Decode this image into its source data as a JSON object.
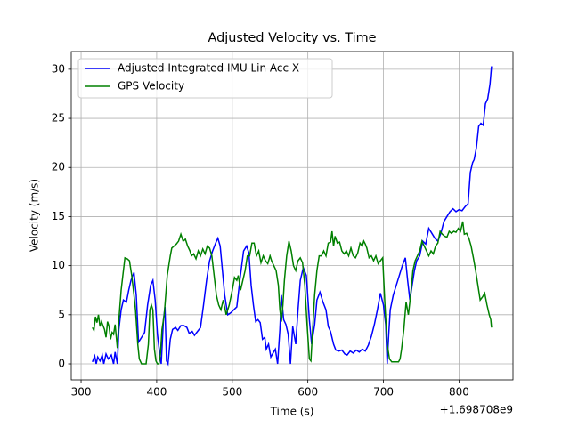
{
  "chart_data": {
    "type": "line",
    "title": "Adjusted Velocity vs. Time",
    "x_label": "Time (s)",
    "y_label": "Velocity (m/s)",
    "x_offset_label": "+1.698708e9",
    "xlim": [
      287,
      871.4
    ],
    "ylim": [
      -1.63,
      31.8
    ],
    "xticks": [
      300,
      400,
      500,
      600,
      700,
      800
    ],
    "yticks": [
      0,
      5,
      10,
      15,
      20,
      25,
      30
    ],
    "grid": true,
    "legend": "upper left",
    "series": [
      {
        "name": "Adjusted Integrated IMU Lin Acc X",
        "color": "#0000ff",
        "x": [
          315,
          318,
          320,
          322,
          325,
          328,
          330,
          333,
          336,
          340,
          343,
          345,
          348,
          350,
          353,
          356,
          360,
          363,
          366,
          370,
          373,
          376,
          380,
          384,
          388,
          392,
          395,
          398,
          401,
          404,
          406,
          409,
          411,
          413,
          415,
          418,
          421,
          425,
          428,
          432,
          436,
          440,
          443,
          447,
          450,
          455,
          458,
          462,
          466,
          470,
          474,
          478,
          481,
          484,
          487,
          490,
          494,
          498,
          502,
          506,
          510,
          515,
          519,
          522,
          525,
          528,
          531,
          534,
          537,
          540,
          543,
          545,
          548,
          551,
          554,
          557,
          560,
          563,
          565,
          568,
          571,
          574,
          577,
          580,
          584,
          587,
          590,
          594,
          598,
          602,
          605,
          609,
          612,
          616,
          620,
          624,
          627,
          630,
          634,
          637,
          641,
          645,
          649,
          652,
          656,
          660,
          664,
          668,
          672,
          676,
          680,
          684,
          688,
          692,
          696,
          700,
          703,
          705,
          707,
          709,
          713,
          717,
          721,
          725,
          729,
          732,
          735,
          738,
          741,
          744,
          748,
          752,
          756,
          760,
          764,
          768,
          772,
          776,
          780,
          784,
          788,
          792,
          796,
          800,
          804,
          808,
          812,
          815,
          818,
          820,
          823,
          826,
          829,
          832,
          835,
          838,
          841,
          843
        ],
        "values": [
          0.2,
          0.8,
          0,
          0.7,
          0.3,
          0.9,
          0,
          1.0,
          0.5,
          0.9,
          0,
          1.2,
          0,
          3.5,
          5.5,
          6.5,
          6.3,
          7.5,
          8.5,
          9.3,
          7,
          2.2,
          2.7,
          3.2,
          6,
          8,
          8.5,
          6.5,
          3,
          1,
          0,
          4.5,
          5.8,
          0.3,
          0,
          2.5,
          3.5,
          3.7,
          3.4,
          3.9,
          3.9,
          3.7,
          3.1,
          3.3,
          2.9,
          3.4,
          3.7,
          6,
          8.5,
          10.5,
          11.5,
          12.3,
          12.8,
          12,
          9.5,
          7,
          5,
          5.2,
          5.5,
          5.8,
          8.5,
          11.5,
          12,
          11.3,
          8,
          6,
          4.3,
          4.5,
          4.2,
          2.5,
          2.7,
          1.5,
          2.0,
          0.7,
          1.1,
          1.5,
          0,
          3.5,
          7,
          4.5,
          4.0,
          3,
          0,
          3.8,
          2,
          5.5,
          8.5,
          9.8,
          9,
          4.5,
          2,
          4,
          6.5,
          7.3,
          6.3,
          5.5,
          3.8,
          3.3,
          2,
          1.4,
          1.3,
          1.4,
          1,
          0.9,
          1.3,
          1.1,
          1.4,
          1.2,
          1.5,
          1.3,
          1.9,
          2.8,
          4,
          5.5,
          7.2,
          6,
          4,
          0,
          3,
          5.5,
          7,
          8,
          9,
          10,
          10.8,
          8.5,
          6.5,
          8,
          9.5,
          10.5,
          11,
          12.5,
          12.2,
          13.8,
          13.3,
          12.8,
          12.5,
          13.3,
          14.5,
          15,
          15.5,
          15.8,
          15.5,
          15.7,
          15.6,
          16,
          16.3,
          19.5,
          20.5,
          20.8,
          22,
          24.2,
          24.5,
          24.3,
          26.5,
          27,
          28.5,
          30.3
        ]
      },
      {
        "name": "GPS Velocity",
        "color": "#008000",
        "x": [
          315,
          317,
          319,
          321,
          323,
          325,
          327,
          329,
          331,
          333,
          335,
          337,
          339,
          341,
          343,
          345,
          348,
          350,
          353,
          356,
          358,
          361,
          364,
          367,
          370,
          372,
          375,
          377,
          380,
          383,
          386,
          389,
          391,
          393,
          395,
          397,
          399,
          401,
          403,
          405,
          407,
          410,
          412,
          414,
          416,
          418,
          420,
          423,
          426,
          429,
          432,
          435,
          438,
          441,
          444,
          446,
          449,
          452,
          455,
          458,
          461,
          464,
          467,
          470,
          473,
          476,
          479,
          482,
          485,
          488,
          492,
          496,
          500,
          503,
          506,
          508,
          511,
          514,
          517,
          520,
          523,
          526,
          529,
          532,
          535,
          538,
          541,
          544,
          547,
          550,
          552,
          555,
          558,
          561,
          563,
          565,
          567,
          569,
          572,
          575,
          578,
          581,
          584,
          587,
          590,
          593,
          596,
          599,
          602,
          604,
          606,
          609,
          612,
          615,
          618,
          621,
          624,
          627,
          630,
          632,
          634,
          636,
          639,
          642,
          645,
          648,
          651,
          654,
          657,
          660,
          663,
          666,
          669,
          672,
          674,
          676,
          678,
          681,
          684,
          687,
          690,
          693,
          696,
          699,
          702,
          705,
          708,
          711,
          714,
          717,
          720,
          722,
          724,
          727,
          730,
          733,
          736,
          739,
          742,
          745,
          748,
          751,
          754,
          757,
          760,
          763,
          766,
          769,
          772,
          775,
          778,
          781,
          784,
          787,
          790,
          793,
          796,
          799,
          802,
          805,
          807,
          810,
          813,
          816,
          819,
          822,
          825,
          828,
          831,
          834,
          837,
          840,
          842,
          843
        ],
        "values": [
          3.7,
          3.4,
          4.8,
          4.2,
          5,
          3.8,
          4.3,
          3.9,
          3.5,
          2.7,
          4.3,
          3.8,
          2.5,
          3.2,
          3,
          4,
          1.6,
          4.5,
          7.5,
          9.5,
          10.8,
          10.7,
          10.5,
          9,
          7,
          5.5,
          2,
          0.5,
          0,
          0,
          0,
          2,
          5.5,
          6,
          5.5,
          1.5,
          0.3,
          0,
          0,
          1,
          3.5,
          5,
          7,
          9,
          10,
          11,
          11.8,
          12,
          12.2,
          12.5,
          13.2,
          12.5,
          12.7,
          12,
          11.5,
          11,
          11.2,
          10.7,
          11.5,
          11,
          11.7,
          11.2,
          12,
          11.8,
          11,
          9,
          7,
          6,
          5.5,
          6.5,
          5,
          6,
          7.5,
          8.8,
          8.5,
          9,
          7.5,
          8.5,
          9.5,
          11,
          11,
          12.3,
          12.3,
          11,
          11.5,
          10.3,
          11,
          10.5,
          10.2,
          11,
          10.5,
          10,
          9.5,
          8,
          5.5,
          4.3,
          6,
          8.5,
          11,
          12.5,
          11.5,
          10,
          9.5,
          10.5,
          10.8,
          10.3,
          8,
          4,
          0.5,
          0.3,
          3,
          7,
          9.5,
          11,
          11,
          11.5,
          11,
          12.3,
          12.4,
          13.5,
          12,
          13,
          12.3,
          12.4,
          11.5,
          11.2,
          11.5,
          11,
          11.8,
          11,
          10.8,
          11.3,
          12.3,
          12,
          12.5,
          12.2,
          11.8,
          10.8,
          11,
          10.5,
          11,
          10.2,
          10.5,
          10.8,
          6,
          2,
          0.5,
          0.2,
          0.2,
          0.2,
          0.2,
          0.5,
          1.5,
          3.5,
          6.3,
          5,
          7,
          9.5,
          10.5,
          11,
          11.5,
          12.5,
          12,
          11.5,
          11,
          11.5,
          11.2,
          12,
          12.3,
          13.5,
          13.2,
          13,
          12.9,
          13.5,
          13.3,
          13.5,
          13.4,
          13.8,
          13.5,
          14.5,
          13.2,
          13.3,
          12.8,
          12,
          10.8,
          9.5,
          8,
          6.5,
          6.8,
          7.2,
          6,
          5,
          4.5,
          3.7
        ]
      }
    ]
  }
}
